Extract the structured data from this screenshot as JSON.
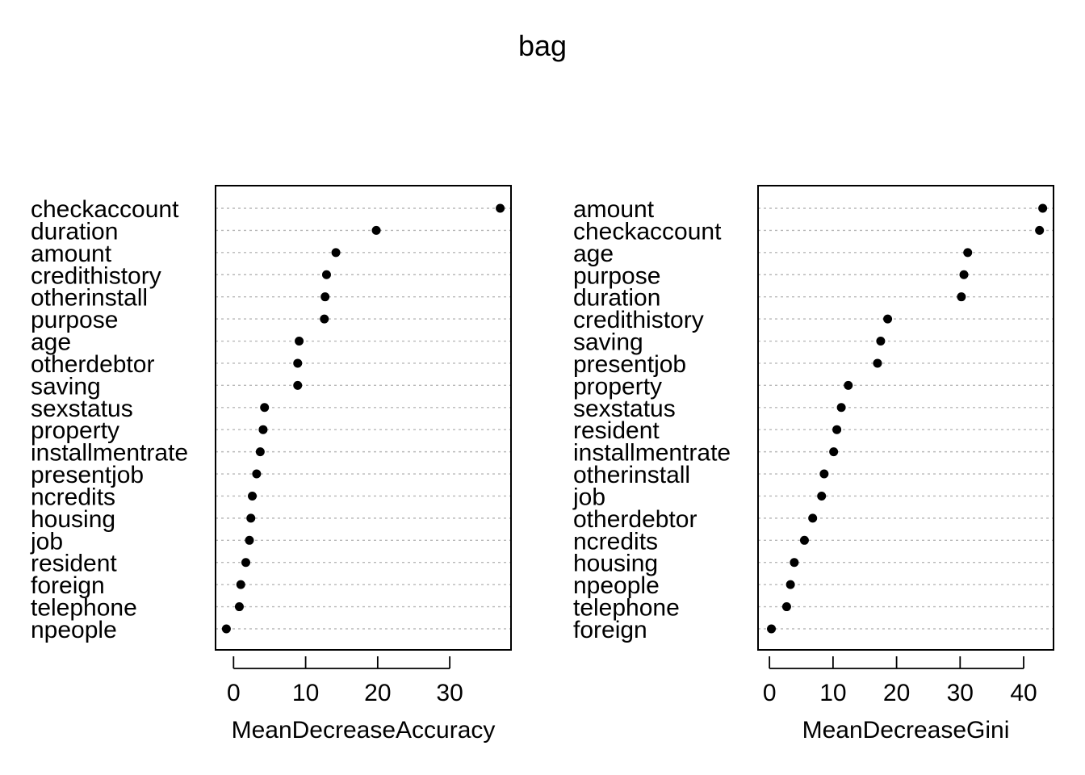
{
  "figure": {
    "title": "bag"
  },
  "chart_data": [
    {
      "type": "scatter",
      "subtype": "dotchart",
      "title": "",
      "xlabel": "MeanDecreaseAccuracy",
      "ylabel": "",
      "xlim": [
        -2.5,
        38.5
      ],
      "xticks": [
        0,
        10,
        20,
        30
      ],
      "grid": "dotted horizontal guide lines",
      "categories": [
        "checkaccount",
        "duration",
        "amount",
        "credithistory",
        "otherinstall",
        "purpose",
        "age",
        "otherdebtor",
        "saving",
        "sexstatus",
        "property",
        "installmentrate",
        "presentjob",
        "ncredits",
        "housing",
        "job",
        "resident",
        "foreign",
        "telephone",
        "npeople"
      ],
      "values": [
        37.0,
        19.8,
        14.2,
        12.9,
        12.7,
        12.6,
        9.1,
        8.9,
        8.9,
        4.3,
        4.1,
        3.7,
        3.2,
        2.6,
        2.4,
        2.2,
        1.7,
        1.0,
        0.8,
        -1.0
      ]
    },
    {
      "type": "scatter",
      "subtype": "dotchart",
      "title": "",
      "xlabel": "MeanDecreaseGini",
      "ylabel": "",
      "xlim": [
        -1.8,
        44.7
      ],
      "xticks": [
        0,
        10,
        20,
        30,
        40
      ],
      "grid": "dotted horizontal guide lines",
      "categories": [
        "amount",
        "checkaccount",
        "age",
        "purpose",
        "duration",
        "credithistory",
        "saving",
        "presentjob",
        "property",
        "sexstatus",
        "resident",
        "installmentrate",
        "otherinstall",
        "job",
        "otherdebtor",
        "ncredits",
        "housing",
        "npeople",
        "telephone",
        "foreign"
      ],
      "values": [
        43.0,
        42.5,
        31.2,
        30.6,
        30.2,
        18.6,
        17.5,
        17.0,
        12.4,
        11.3,
        10.6,
        10.1,
        8.6,
        8.2,
        6.8,
        5.5,
        3.9,
        3.3,
        2.7,
        0.3
      ]
    }
  ]
}
